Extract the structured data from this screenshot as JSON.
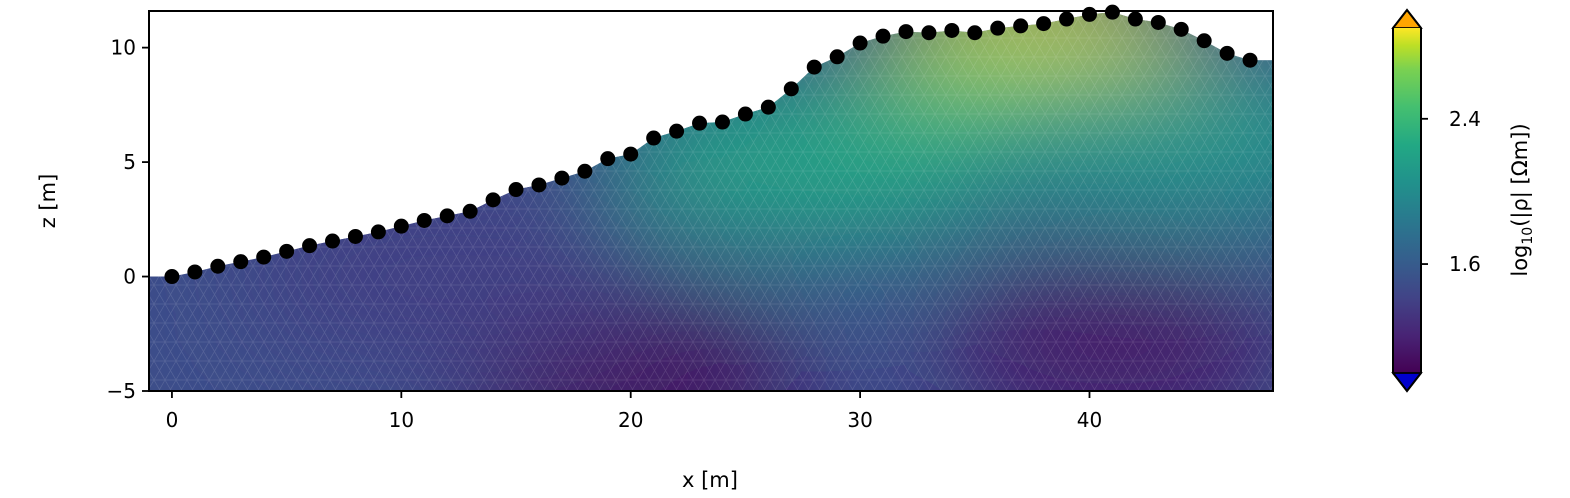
{
  "chart_data": {
    "type": "heatmap",
    "xlabel": "x [m]",
    "ylabel": "z [m]",
    "xlim": [
      -1,
      48
    ],
    "ylim": [
      -5,
      11.6
    ],
    "x_ticks": [
      {
        "value": 0,
        "label": "0"
      },
      {
        "value": 10,
        "label": "10"
      },
      {
        "value": 20,
        "label": "20"
      },
      {
        "value": 30,
        "label": "30"
      },
      {
        "value": 40,
        "label": "40"
      }
    ],
    "y_ticks": [
      {
        "value": -5,
        "label": "−5"
      },
      {
        "value": 0,
        "label": "0"
      },
      {
        "value": 5,
        "label": "5"
      },
      {
        "value": 10,
        "label": "10"
      }
    ],
    "electrodes": {
      "x": [
        0,
        1,
        2,
        3,
        4,
        5,
        6,
        7,
        8,
        9,
        10,
        11,
        12,
        13,
        14,
        15,
        16,
        17,
        18,
        19,
        20,
        21,
        22,
        23,
        24,
        25,
        26,
        27,
        28,
        29,
        30,
        31,
        32,
        33,
        34,
        35,
        36,
        37,
        38,
        39,
        40,
        41,
        42,
        43,
        44,
        45,
        46,
        47
      ],
      "z": [
        0.0,
        0.2,
        0.45,
        0.65,
        0.85,
        1.1,
        1.35,
        1.55,
        1.75,
        1.95,
        2.2,
        2.45,
        2.65,
        2.85,
        3.35,
        3.8,
        4.0,
        4.3,
        4.6,
        5.15,
        5.35,
        6.05,
        6.35,
        6.7,
        6.75,
        7.1,
        7.4,
        8.2,
        9.15,
        9.6,
        10.2,
        10.5,
        10.7,
        10.65,
        10.75,
        10.65,
        10.85,
        10.95,
        11.05,
        11.25,
        11.45,
        11.55,
        11.25,
        11.1,
        10.8,
        10.3,
        9.75,
        9.45
      ]
    },
    "resistivity_blobs": [
      {
        "x": 38,
        "z": 9.5,
        "log10_rho": 2.8
      },
      {
        "x": 34,
        "z": 6.5,
        "log10_rho": 2.4
      },
      {
        "x": 28,
        "z": 5,
        "log10_rho": 2.1
      },
      {
        "x": 44,
        "z": 6,
        "log10_rho": 2.0
      },
      {
        "x": 20,
        "z": -4.5,
        "log10_rho": 1.05
      },
      {
        "x": 41,
        "z": -3,
        "log10_rho": 1.1
      },
      {
        "x": 12,
        "z": 0,
        "log10_rho": 1.35
      }
    ],
    "colorbar": {
      "label_base": "log",
      "label_sub": "10",
      "label_rest": "(|ρ| [Ωm])",
      "ticks": [
        {
          "value": 1.6,
          "label": "1.6"
        },
        {
          "value": 2.4,
          "label": "2.4"
        }
      ],
      "range": [
        1.0,
        2.9
      ],
      "colormap": "viridis",
      "extend_over_color": "#ffa500",
      "extend_under_color": "#0000cd"
    }
  }
}
